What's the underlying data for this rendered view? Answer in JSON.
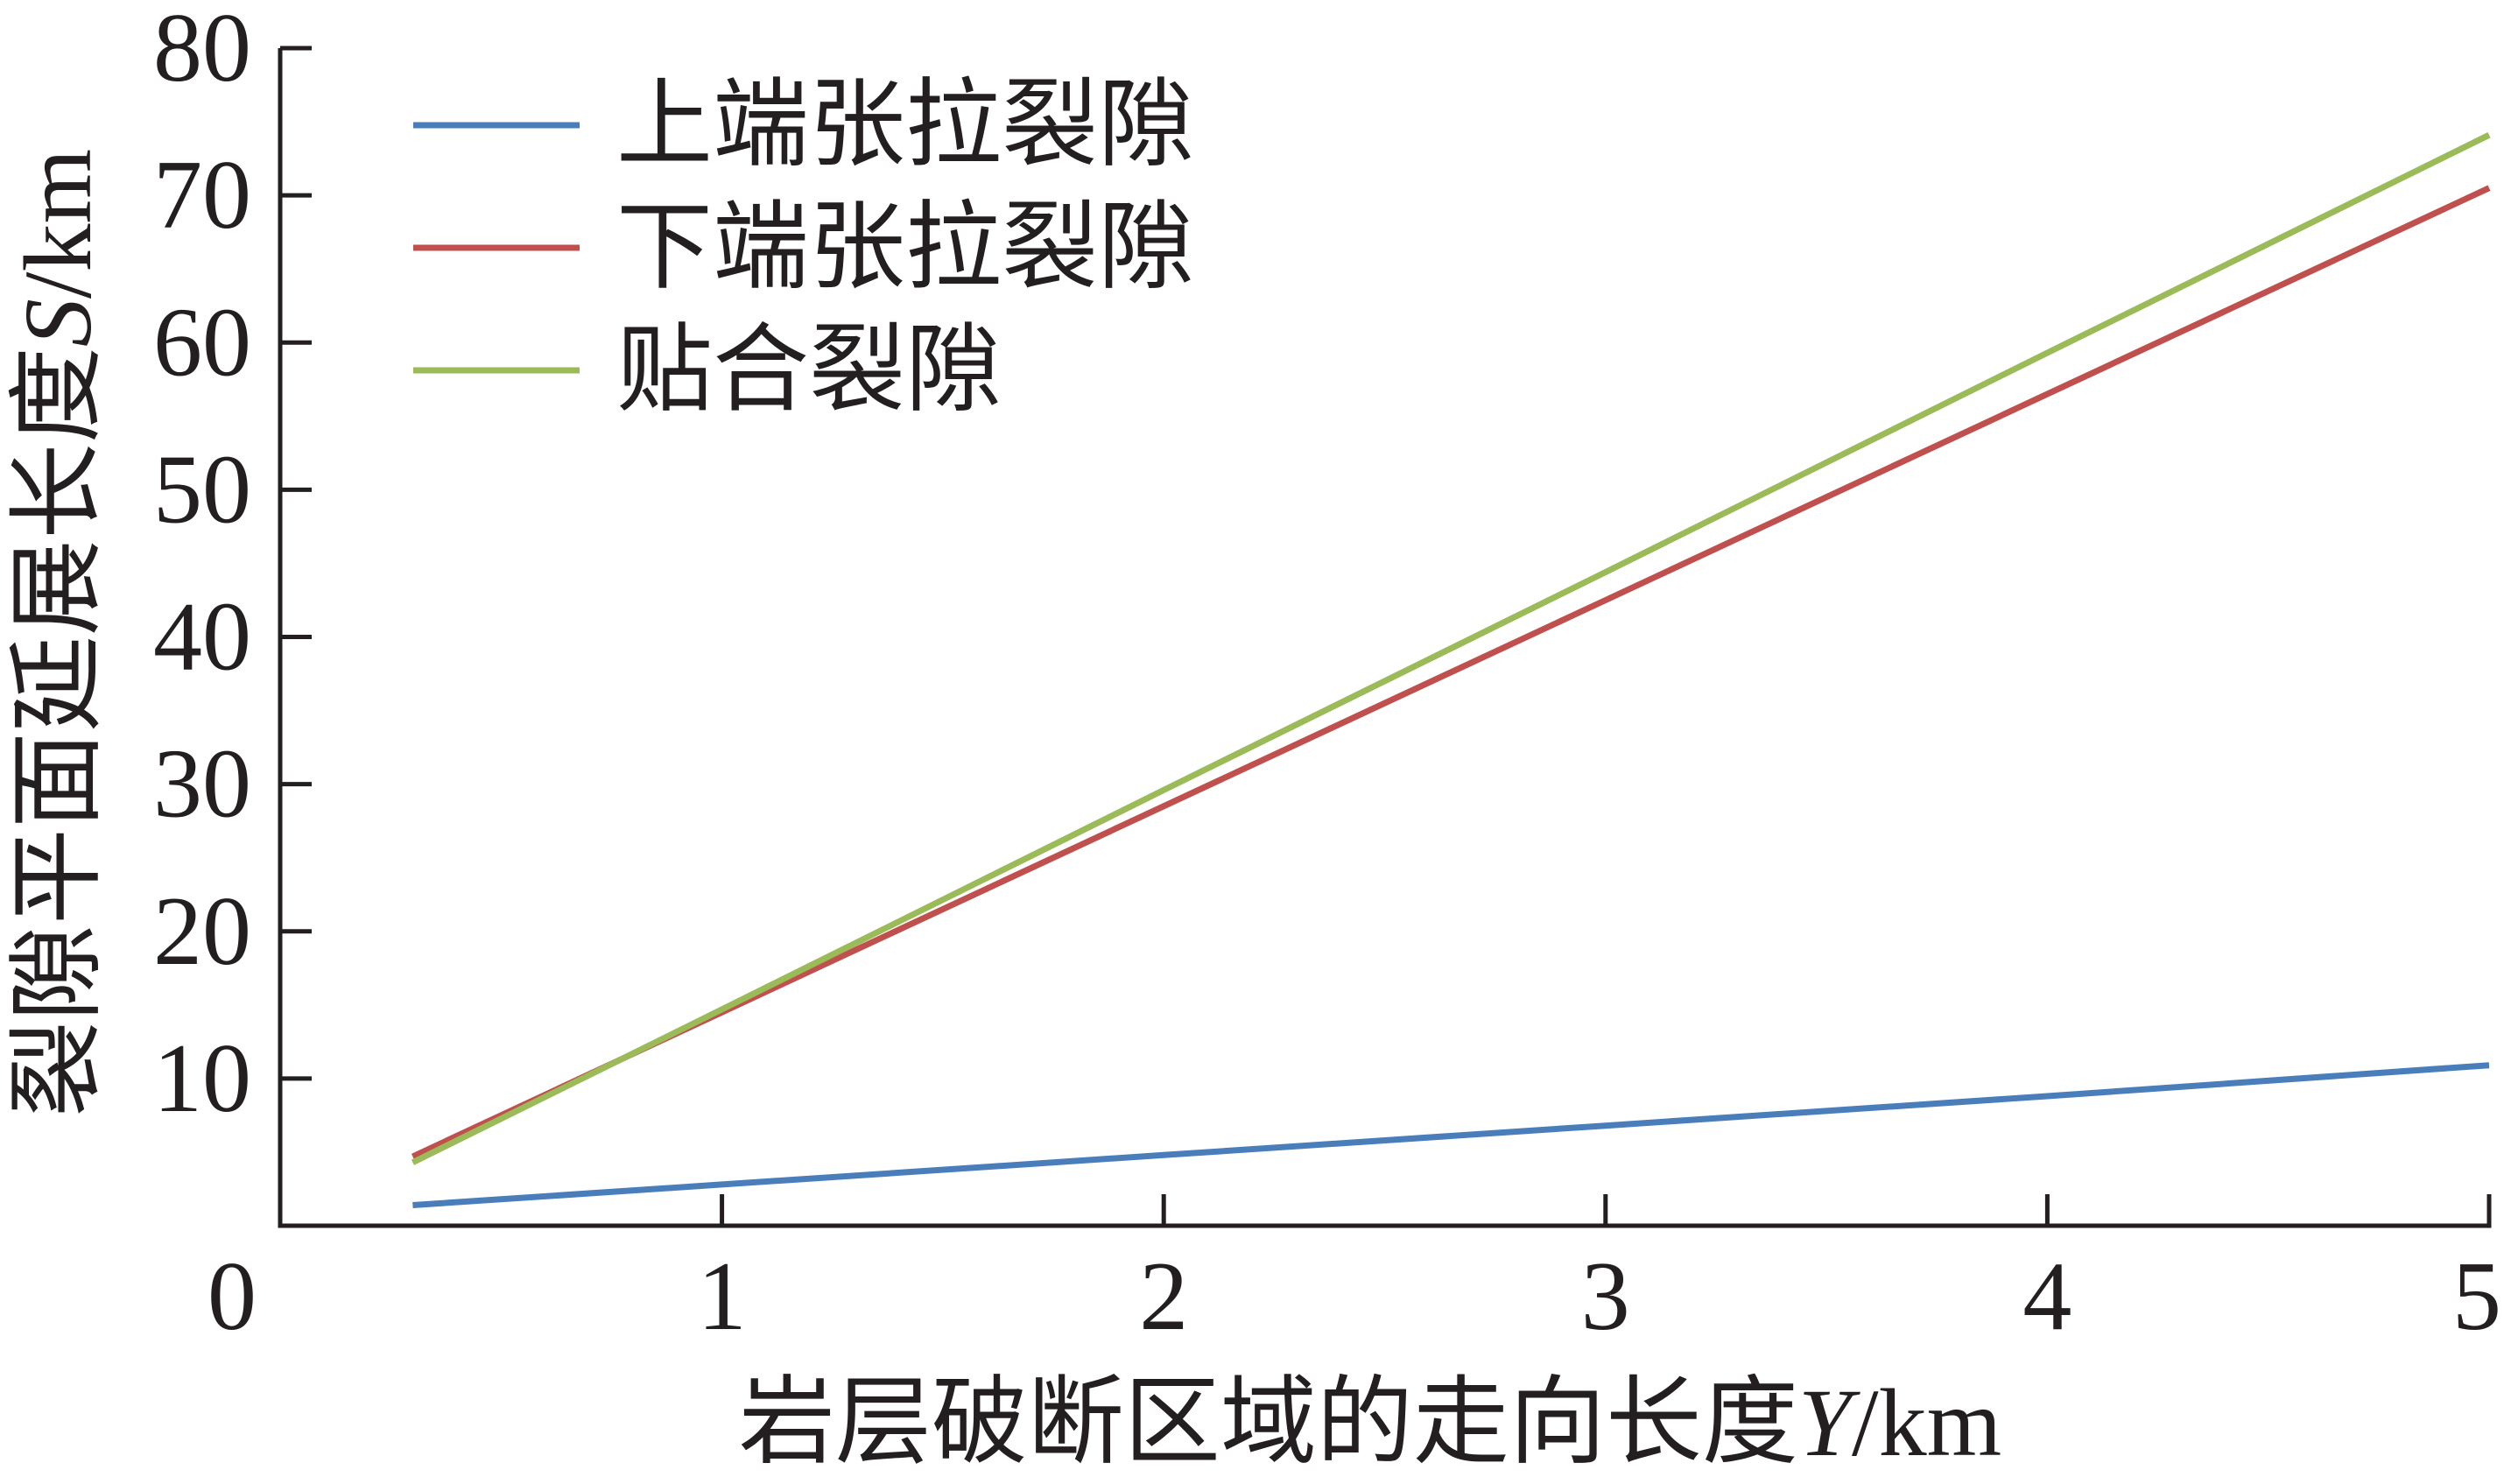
{
  "chart_data": {
    "type": "line",
    "x": [
      0.3,
      1,
      2,
      3,
      4,
      5
    ],
    "series": [
      {
        "name": "上端张拉裂隙",
        "color": "#4A7EBB",
        "values": [
          1.4,
          2.8,
          4.8,
          6.8,
          8.8,
          10.9
        ]
      },
      {
        "name": "下端张拉裂隙",
        "color": "#C0504D",
        "values": [
          4.7,
          14.5,
          28.5,
          42.5,
          56.5,
          70.5
        ]
      },
      {
        "name": "贴合裂隙",
        "color": "#9BBB59",
        "values": [
          4.3,
          14.7,
          29.6,
          44.4,
          59.3,
          74.1
        ]
      }
    ],
    "xlabel": "岩层破断区域的走向长度Y/km",
    "ylabel": "裂隙平面延展长度S/km",
    "xlim": [
      0,
      5
    ],
    "ylim": [
      0,
      80
    ],
    "xticks": [
      "0",
      "1",
      "2",
      "3",
      "4",
      "5"
    ],
    "yticks": [
      "10",
      "20",
      "30",
      "40",
      "50",
      "60",
      "70",
      "80"
    ],
    "grid": false,
    "legend": "top-left",
    "axis_color": "#231F20"
  }
}
